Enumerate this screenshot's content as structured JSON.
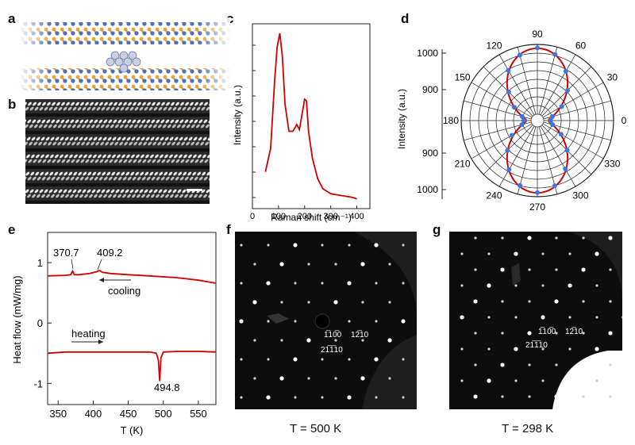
{
  "panels": {
    "a": {
      "label": "a"
    },
    "b": {
      "label": "b"
    },
    "c": {
      "label": "c"
    },
    "d": {
      "label": "d"
    },
    "e": {
      "label": "e"
    },
    "f": {
      "label": "f",
      "caption": "T = 500 K",
      "spots": {
        "s1": "1̅10̅0",
        "s2": "12̅10",
        "s3": "21̅1̅10"
      }
    },
    "g": {
      "label": "g",
      "caption": "T = 298 K",
      "spots": {
        "s1": "1̅10̅0",
        "s2": "12̅10",
        "s3": "21̅1̅10"
      }
    }
  },
  "chart_data": [
    {
      "panel": "c",
      "type": "line",
      "xlabel": "Raman shift (cm⁻¹)",
      "ylabel": "Intensity (a.u.)",
      "xlim": [
        0,
        450
      ],
      "x_ticks": [
        "0",
        "100",
        "200",
        "300",
        "400"
      ],
      "x": [
        50,
        70,
        85,
        95,
        105,
        115,
        125,
        140,
        155,
        170,
        180,
        190,
        200,
        207,
        215,
        230,
        250,
        270,
        300,
        340,
        380,
        400
      ],
      "y": [
        0.18,
        0.32,
        0.72,
        0.92,
        1.0,
        0.86,
        0.58,
        0.42,
        0.42,
        0.46,
        0.43,
        0.52,
        0.61,
        0.6,
        0.42,
        0.26,
        0.14,
        0.08,
        0.05,
        0.04,
        0.03,
        0.02
      ]
    },
    {
      "panel": "d",
      "type": "scatter",
      "subtype": "polar",
      "ylabel": "Intensity (a.u.)",
      "angle_ticks": [
        "0",
        "30",
        "60",
        "90",
        "120",
        "150",
        "180",
        "210",
        "240",
        "270",
        "300",
        "330"
      ],
      "radial_ticks": [
        "900",
        "1000"
      ],
      "r_range": [
        800,
        1000
      ],
      "fit_curve": "r = 814 + 175 sin²(θ)",
      "points_angle_deg": [
        0,
        15,
        30,
        45,
        60,
        75,
        90,
        105,
        120,
        135,
        150,
        165,
        180,
        195,
        210,
        225,
        240,
        255,
        270,
        285,
        300,
        315,
        330,
        345
      ],
      "points_r": [
        820,
        826,
        862,
        904,
        945,
        978,
        990,
        976,
        948,
        898,
        858,
        827,
        821,
        828,
        866,
        903,
        944,
        974,
        988,
        975,
        942,
        902,
        860,
        827
      ]
    },
    {
      "panel": "e",
      "type": "line",
      "xlabel": "T (K)",
      "ylabel": "Heat flow (mW/mg)",
      "xlim": [
        335,
        575
      ],
      "ylim": [
        -1.35,
        1.5
      ],
      "x_ticks": [
        "350",
        "400",
        "450",
        "500",
        "550"
      ],
      "y_ticks": [
        "-1",
        "0",
        "1"
      ],
      "annotations": [
        "370.7",
        "409.2",
        "494.8"
      ],
      "series": [
        {
          "name": "cooling",
          "x": [
            335,
            360,
            368,
            370.7,
            373,
            380,
            395,
            405,
            409.2,
            413,
            425,
            450,
            480,
            520,
            550,
            575
          ],
          "y": [
            0.78,
            0.79,
            0.8,
            0.86,
            0.8,
            0.8,
            0.82,
            0.85,
            0.87,
            0.84,
            0.82,
            0.8,
            0.78,
            0.75,
            0.71,
            0.66
          ]
        },
        {
          "name": "heating",
          "x": [
            335,
            360,
            400,
            450,
            480,
            490,
            493,
            494.8,
            496.5,
            500,
            520,
            550,
            575
          ],
          "y": [
            -0.5,
            -0.48,
            -0.48,
            -0.48,
            -0.48,
            -0.5,
            -0.62,
            -0.96,
            -0.58,
            -0.48,
            -0.47,
            -0.47,
            -0.48
          ]
        }
      ]
    }
  ]
}
